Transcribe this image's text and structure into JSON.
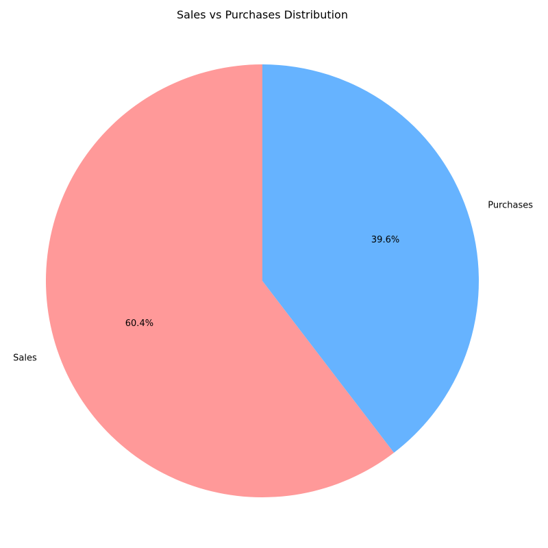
{
  "chart_data": {
    "type": "pie",
    "title": "Sales vs Purchases Distribution",
    "start_angle_deg": 90,
    "direction": "counterclockwise",
    "slices": [
      {
        "label": "Sales",
        "value": 60.4,
        "percent_label": "60.4%",
        "color": "#ff9999"
      },
      {
        "label": "Purchases",
        "value": 39.6,
        "percent_label": "39.6%",
        "color": "#66b3ff"
      }
    ]
  }
}
